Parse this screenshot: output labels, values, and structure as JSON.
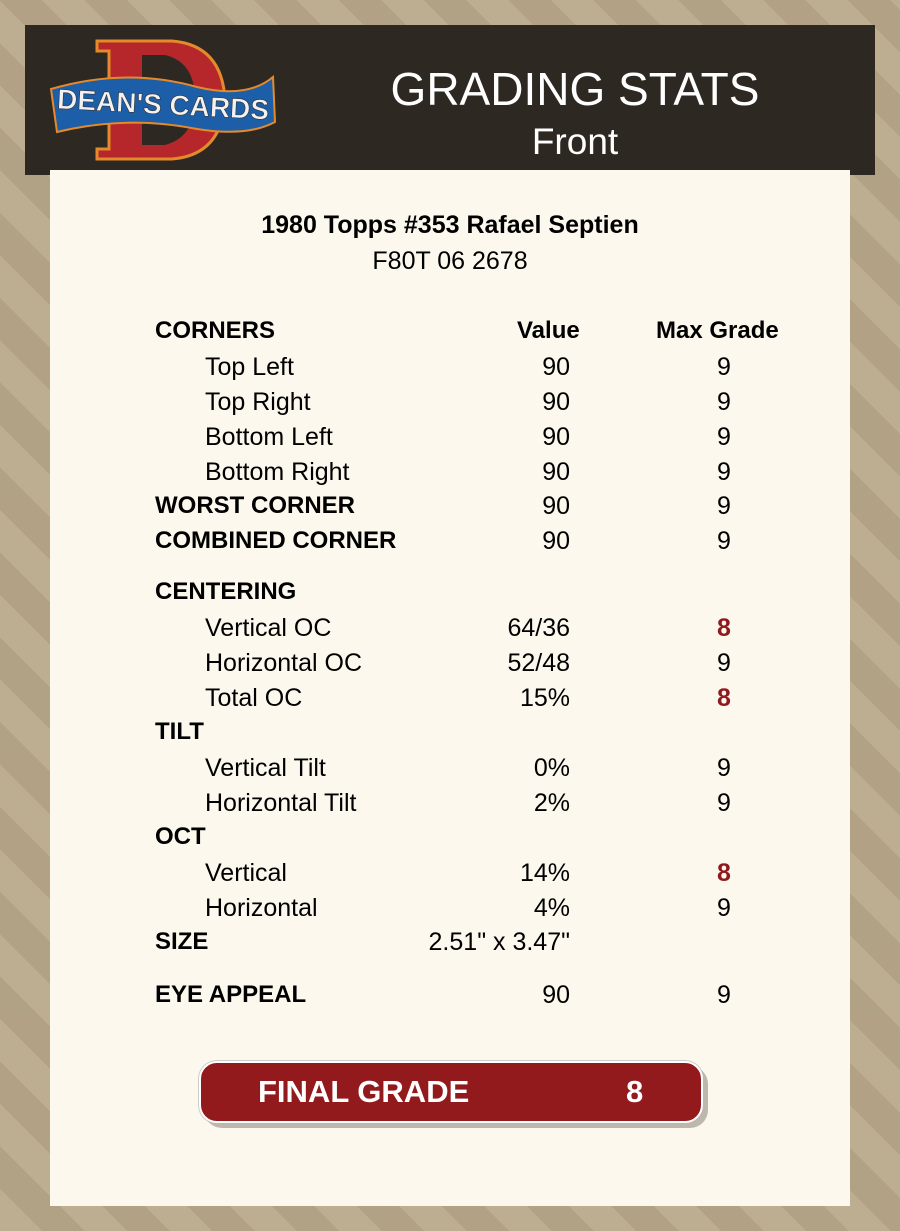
{
  "header": {
    "logo_text": "DEAN'S CARDS",
    "title": "GRADING STATS",
    "subtitle": "Front"
  },
  "card": {
    "name": "1980 Topps #353 Rafael Septien",
    "id": "F80T 06 2678"
  },
  "columns": {
    "value": "Value",
    "max_grade": "Max Grade"
  },
  "rows": [
    {
      "label": "CORNERS",
      "type": "head"
    },
    {
      "label": "Top Left",
      "value": "90",
      "max": "9",
      "type": "sub"
    },
    {
      "label": "Top Right",
      "value": "90",
      "max": "9",
      "type": "sub"
    },
    {
      "label": "Bottom Left",
      "value": "90",
      "max": "9",
      "type": "sub"
    },
    {
      "label": "Bottom Right",
      "value": "90",
      "max": "9",
      "type": "sub"
    },
    {
      "label": "WORST CORNER",
      "value": "90",
      "max": "9",
      "type": "head"
    },
    {
      "label": "COMBINED CORNER",
      "value": "90",
      "max": "9",
      "type": "head"
    },
    {
      "label": "CENTERING",
      "type": "head"
    },
    {
      "label": "Vertical OC",
      "value": "64/36",
      "max": "8",
      "type": "sub",
      "low": true
    },
    {
      "label": "Horizontal OC",
      "value": "52/48",
      "max": "9",
      "type": "sub"
    },
    {
      "label": "Total OC",
      "value": "15%",
      "max": "8",
      "type": "sub",
      "low": true
    },
    {
      "label": "TILT",
      "type": "head"
    },
    {
      "label": "Vertical Tilt",
      "value": "0%",
      "max": "9",
      "type": "sub"
    },
    {
      "label": "Horizontal Tilt",
      "value": "2%",
      "max": "9",
      "type": "sub"
    },
    {
      "label": "OCT",
      "type": "head"
    },
    {
      "label": "Vertical",
      "value": "14%",
      "max": "8",
      "type": "sub",
      "low": true
    },
    {
      "label": "Horizontal",
      "value": "4%",
      "max": "9",
      "type": "sub"
    },
    {
      "label": "SIZE",
      "value": "2.51\" x 3.47\"",
      "type": "head"
    },
    {
      "label": "EYE APPEAL",
      "value": "90",
      "max": "9",
      "type": "head"
    }
  ],
  "final": {
    "label": "FINAL GRADE",
    "value": "8"
  },
  "colors": {
    "header_bg": "#2e2822",
    "panel_bg": "#fcf8ee",
    "accent_red": "#921a1d",
    "low_grade": "#8e1a1e"
  }
}
